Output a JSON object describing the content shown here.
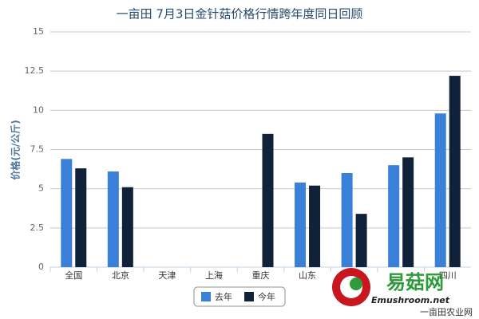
{
  "chart_data": {
    "type": "bar",
    "title": "一亩田 7月3日金针菇价格行情跨年度同日回顾",
    "y_label": "价格(元/公斤)",
    "categories": [
      "全国",
      "北京",
      "天津",
      "上海",
      "重庆",
      "山东",
      null,
      null,
      "四川"
    ],
    "series": [
      {
        "name": "去年",
        "color": "#3a80d8",
        "values": [
          6.9,
          6.1,
          null,
          null,
          null,
          5.4,
          6.0,
          6.5,
          9.8
        ]
      },
      {
        "name": "今年",
        "color": "#10223a",
        "values": [
          6.3,
          5.1,
          null,
          null,
          8.5,
          5.2,
          3.4,
          7.0,
          12.2
        ]
      }
    ],
    "ylim": [
      0,
      15
    ],
    "yticks": [
      0,
      2.5,
      5,
      7.5,
      10,
      12.5,
      15
    ],
    "grid": true,
    "legend": "bottom"
  },
  "watermark": {
    "logo": "易菇网",
    "site": "Emushroom.net",
    "credit": "一亩田农业网"
  }
}
